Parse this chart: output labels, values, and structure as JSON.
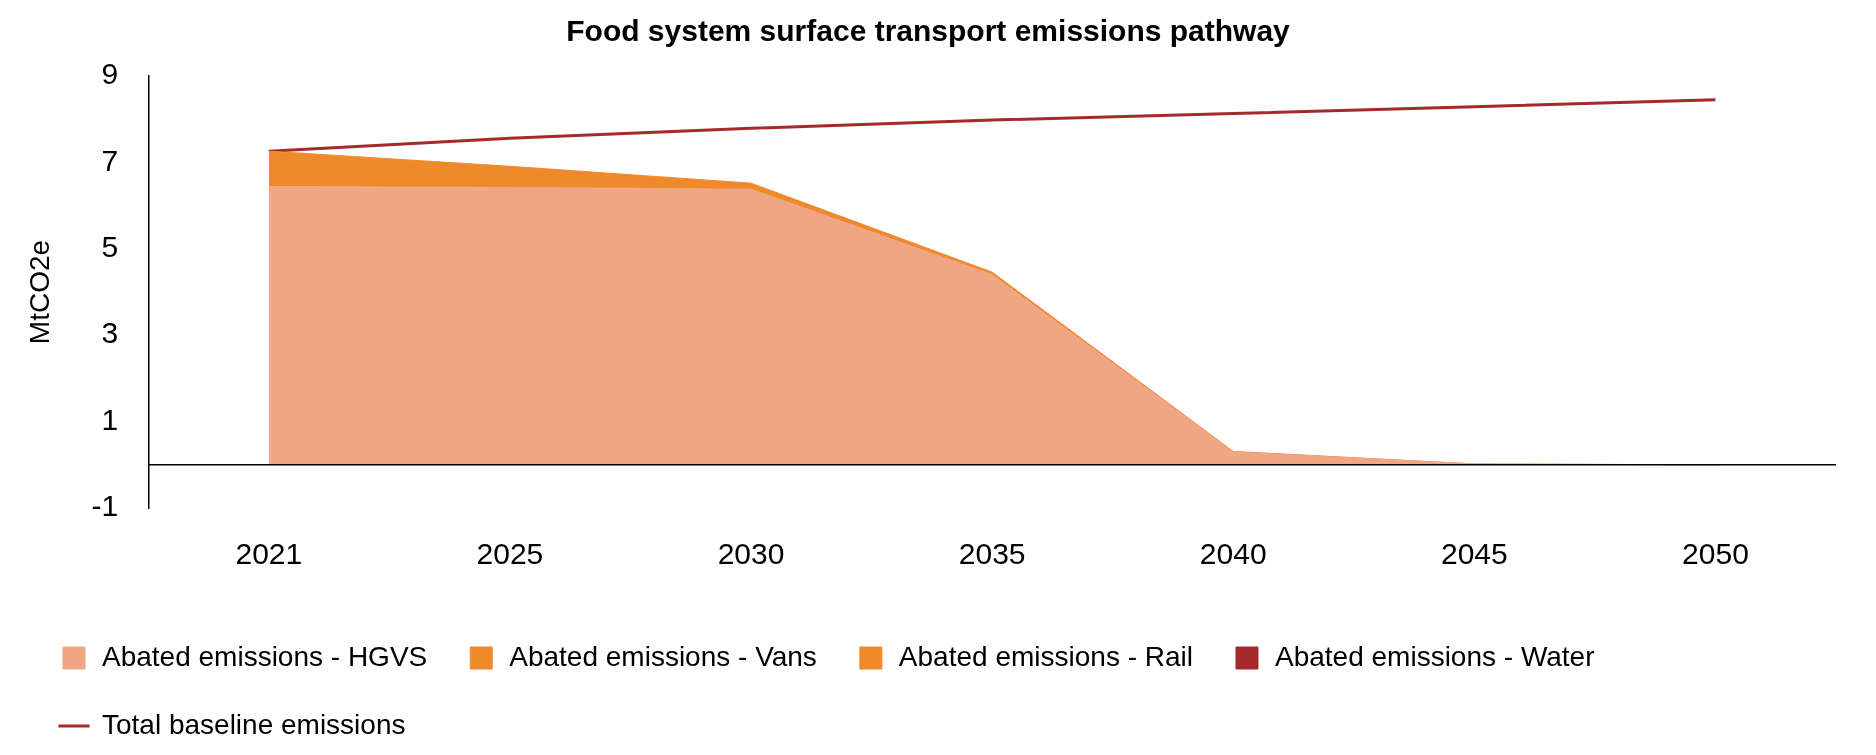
{
  "chart_data": {
    "type": "area",
    "title": "Food system surface transport emissions pathway",
    "ylabel": "MtCO2e",
    "categories": [
      "2021",
      "2025",
      "2030",
      "2035",
      "2040",
      "2045",
      "2050"
    ],
    "stacked": true,
    "ylim": [
      -1,
      9
    ],
    "yticks": [
      -1,
      1,
      3,
      5,
      7,
      9
    ],
    "grid": false,
    "legend": "bottom",
    "marker": "none",
    "series": [
      {
        "name": "Abated emissions - HGVS",
        "color": "#f0a584",
        "values": [
          6.44,
          6.42,
          6.38,
          4.4,
          0.3,
          0.02,
          0.0
        ]
      },
      {
        "name": "Abated emissions - Vans",
        "color": "#ee8a2b",
        "values": [
          0.82,
          0.49,
          0.14,
          0.06,
          0.01,
          0.0,
          0.0
        ]
      },
      {
        "name": "Abated emissions - Rail",
        "color": "#f08a2a",
        "values": [
          null,
          null,
          null,
          null,
          null,
          null,
          null
        ]
      },
      {
        "name": "Abated emissions - Water",
        "color": "#a52a2a",
        "values": [
          null,
          null,
          null,
          null,
          null,
          null,
          null
        ]
      },
      {
        "name": "Total baseline emissions",
        "type": "line",
        "color": "#a52a2a",
        "values": [
          7.26,
          7.56,
          7.79,
          7.98,
          8.13,
          8.29,
          8.45
        ]
      }
    ]
  }
}
